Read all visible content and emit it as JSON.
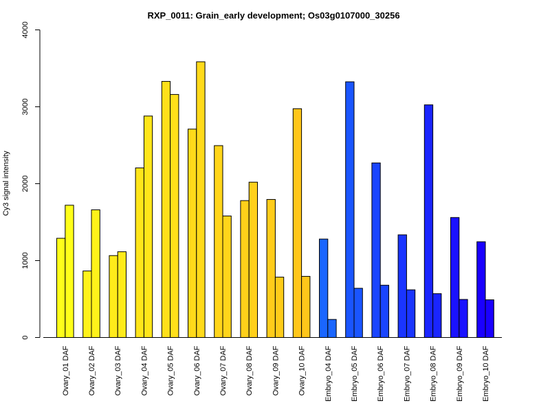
{
  "chart_data": {
    "type": "bar",
    "title": "RXP_0011: Grain_early development; Os03g0107000_30256",
    "xlabel": "",
    "ylabel": "Cy3 signal intensity",
    "ylim": [
      0,
      4000
    ],
    "yticks": [
      0,
      1000,
      2000,
      3000,
      4000
    ],
    "grid": false,
    "categories": [
      "Ovary_01 DAF",
      "Ovary_02 DAF",
      "Ovary_03 DAF",
      "Ovary_04 DAF",
      "Ovary_05 DAF",
      "Ovary_06 DAF",
      "Ovary_07 DAF",
      "Ovary_08 DAF",
      "Ovary_09 DAF",
      "Ovary_10 DAF",
      "Embryo_04 DAF",
      "Embryo_05 DAF",
      "Embryo_06 DAF",
      "Embryo_07 DAF",
      "Embryo_08 DAF",
      "Embryo_09 DAF",
      "Embryo_10 DAF"
    ],
    "series": [
      {
        "values": [
          1290,
          865,
          1065,
          2205,
          3330,
          2710,
          2495,
          1780,
          1795,
          2975,
          1280,
          3325,
          2270,
          1335,
          3025,
          1560,
          1245
        ]
      },
      {
        "values": [
          1720,
          1660,
          1115,
          2880,
          3160,
          3585,
          1580,
          2020,
          785,
          795,
          235,
          640,
          680,
          620,
          570,
          495,
          490
        ]
      }
    ],
    "colors": [
      "#ffff1a",
      "#fff21a",
      "#ffeb1a",
      "#ffe51a",
      "#ffe01a",
      "#ffda1a",
      "#ffd51a",
      "#ffd01a",
      "#ffcc1a",
      "#ffc61a",
      "#1a66ff",
      "#1a55ff",
      "#1a45ff",
      "#1a35ff",
      "#1a25ff",
      "#1a12ff",
      "#1a00ff"
    ]
  }
}
